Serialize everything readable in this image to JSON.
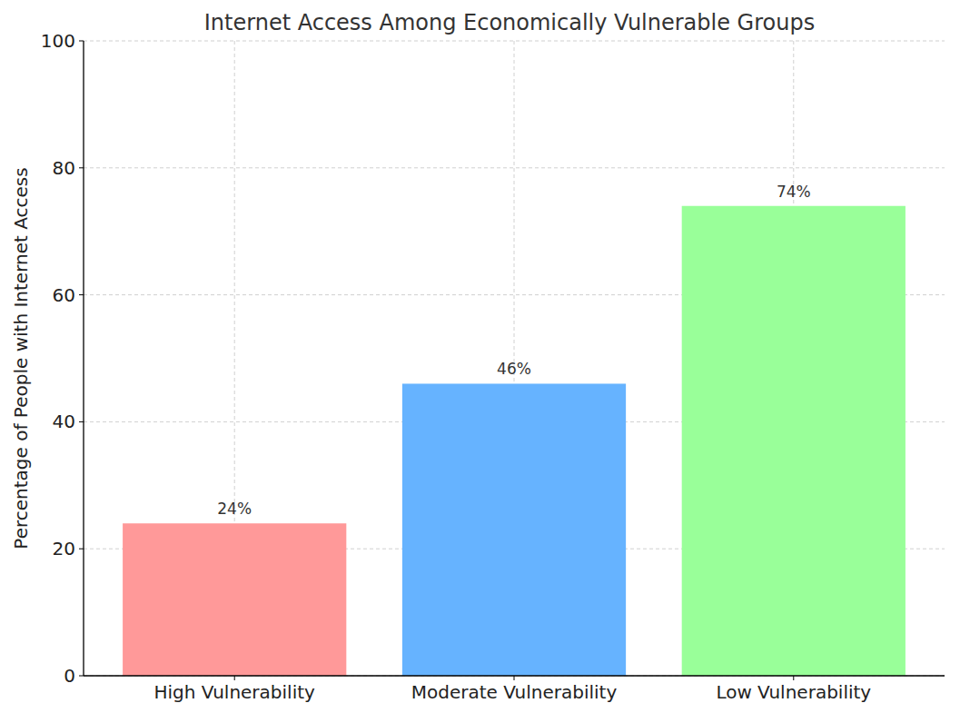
{
  "chart_data": {
    "type": "bar",
    "title": "Internet Access Among Economically Vulnerable Groups",
    "y_label": "Percentage of People with Internet Access",
    "categories": [
      "High Vulnerability",
      "Moderate Vulnerability",
      "Low Vulnerability"
    ],
    "values": [
      24,
      46,
      74
    ],
    "value_labels": [
      "24%",
      "46%",
      "74%"
    ],
    "colors": [
      "#ff9999",
      "#66b3ff",
      "#99ff99"
    ],
    "ylim": [
      0,
      100
    ],
    "yticks": [
      0,
      20,
      40,
      60,
      80,
      100
    ],
    "grid": true,
    "data_labels": true
  }
}
